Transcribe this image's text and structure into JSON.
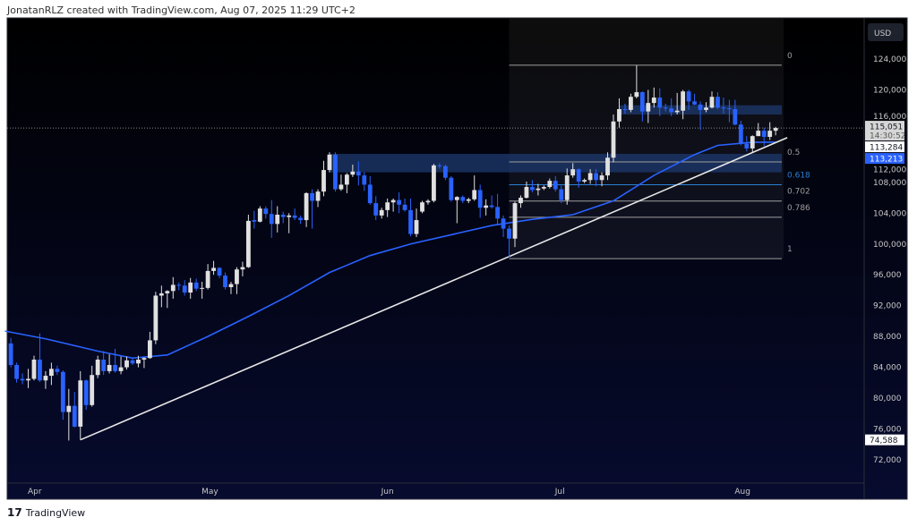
{
  "header": {
    "text": "JonatanRLZ created with TradingView.com, Aug 07, 2025 11:29 UTC+2"
  },
  "footer": {
    "brand": "TradingView",
    "logo_text": "17"
  },
  "axis": {
    "currency": "USD"
  },
  "colors": {
    "up": "#e0e0e0",
    "down": "#2962ff",
    "ma": "#2962ff",
    "trendline": "#e8e8e8",
    "zone": "#1e3a6e"
  },
  "chart_data": {
    "type": "candlestick",
    "title": "",
    "ylim": [
      70000,
      128000
    ],
    "y_ticks": [
      124000,
      120000,
      116000,
      112000,
      108000,
      104000,
      100000,
      96000,
      92000,
      88000,
      84000,
      80000,
      76000,
      72000
    ],
    "y_tick_labels": [
      "124,000",
      "120,000",
      "116,000",
      "112,000",
      "108,000",
      "104,000",
      "100,000",
      "96,000",
      "92,000",
      "88,000",
      "84,000",
      "80,000",
      "76,000",
      "72,000"
    ],
    "x_ticks": [
      {
        "date": "2025-04-01",
        "label": "Apr"
      },
      {
        "date": "2025-05-01",
        "label": "May"
      },
      {
        "date": "2025-06-01",
        "label": "Jun"
      },
      {
        "date": "2025-07-01",
        "label": "Jul"
      },
      {
        "date": "2025-08-01",
        "label": "Aug"
      }
    ],
    "grid": false,
    "candles_fields": [
      "date",
      "open",
      "high",
      "low",
      "close"
    ],
    "candles": [
      [
        "2025-03-28",
        87100,
        87800,
        84000,
        84300
      ],
      [
        "2025-03-29",
        84300,
        84600,
        82000,
        82500
      ],
      [
        "2025-03-30",
        82500,
        83200,
        81800,
        82300
      ],
      [
        "2025-03-31",
        82300,
        83800,
        81300,
        82500
      ],
      [
        "2025-04-01",
        82500,
        85500,
        82300,
        85000
      ],
      [
        "2025-04-02",
        85000,
        88400,
        82100,
        82300
      ],
      [
        "2025-04-03",
        82300,
        83500,
        81200,
        82900
      ],
      [
        "2025-04-04",
        82900,
        84600,
        81700,
        83800
      ],
      [
        "2025-04-05",
        83800,
        84200,
        83000,
        83400
      ],
      [
        "2025-04-06",
        83400,
        83600,
        77200,
        78200
      ],
      [
        "2025-04-07",
        78200,
        81200,
        74500,
        79000
      ],
      [
        "2025-04-08",
        79000,
        80800,
        76200,
        76300
      ],
      [
        "2025-04-09",
        76300,
        83500,
        74588,
        82300
      ],
      [
        "2025-04-10",
        82300,
        82400,
        78500,
        79100
      ],
      [
        "2025-04-11",
        79100,
        84200,
        78900,
        83000
      ],
      [
        "2025-04-12",
        83000,
        85500,
        82600,
        85000
      ],
      [
        "2025-04-13",
        85000,
        86100,
        83000,
        83500
      ],
      [
        "2025-04-14",
        83500,
        85700,
        83200,
        84300
      ],
      [
        "2025-04-15",
        84300,
        86400,
        83300,
        83500
      ],
      [
        "2025-04-16",
        83500,
        85400,
        83100,
        84000
      ],
      [
        "2025-04-17",
        84000,
        85400,
        83700,
        84900
      ],
      [
        "2025-04-18",
        84900,
        85100,
        84300,
        84500
      ],
      [
        "2025-04-19",
        84500,
        85500,
        84000,
        85000
      ],
      [
        "2025-04-20",
        85000,
        85300,
        83900,
        85200
      ],
      [
        "2025-04-21",
        85200,
        88600,
        85100,
        87500
      ],
      [
        "2025-04-22",
        87500,
        93800,
        87000,
        93300
      ],
      [
        "2025-04-23",
        93300,
        94600,
        91800,
        93600
      ],
      [
        "2025-04-24",
        93600,
        94000,
        91700,
        93900
      ],
      [
        "2025-04-25",
        93900,
        95700,
        92900,
        94700
      ],
      [
        "2025-04-26",
        94700,
        95000,
        94000,
        94600
      ],
      [
        "2025-04-27",
        94600,
        95300,
        93300,
        93700
      ],
      [
        "2025-04-28",
        93700,
        95600,
        92900,
        95000
      ],
      [
        "2025-04-29",
        95000,
        95500,
        93900,
        94200
      ],
      [
        "2025-04-30",
        94200,
        95100,
        92900,
        94300
      ],
      [
        "2025-05-01",
        94300,
        97400,
        94100,
        96500
      ],
      [
        "2025-05-02",
        96500,
        97800,
        96000,
        96900
      ],
      [
        "2025-05-03",
        96900,
        97000,
        95600,
        95900
      ],
      [
        "2025-05-04",
        95900,
        96300,
        94100,
        94400
      ],
      [
        "2025-05-05",
        94400,
        95100,
        93500,
        94800
      ],
      [
        "2025-05-06",
        94800,
        97000,
        93500,
        96700
      ],
      [
        "2025-05-07",
        96700,
        97700,
        95800,
        97000
      ],
      [
        "2025-05-08",
        97000,
        103800,
        96900,
        103000
      ],
      [
        "2025-05-09",
        103100,
        104300,
        102000,
        102900
      ],
      [
        "2025-05-10",
        102900,
        104900,
        102800,
        104600
      ],
      [
        "2025-05-11",
        104600,
        104900,
        103300,
        103900
      ],
      [
        "2025-05-12",
        103900,
        105700,
        100800,
        102600
      ],
      [
        "2025-05-13",
        102600,
        104900,
        101500,
        103800
      ],
      [
        "2025-05-14",
        103800,
        104200,
        102700,
        103500
      ],
      [
        "2025-05-15",
        103500,
        104000,
        101400,
        103700
      ],
      [
        "2025-05-16",
        103700,
        104600,
        103100,
        103400
      ],
      [
        "2025-05-17",
        103400,
        103700,
        102600,
        103100
      ],
      [
        "2025-05-18",
        103100,
        106700,
        102200,
        106600
      ],
      [
        "2025-05-19",
        106600,
        107100,
        102000,
        105600
      ],
      [
        "2025-05-20",
        105600,
        107100,
        104800,
        106800
      ],
      [
        "2025-05-21",
        106800,
        110800,
        106200,
        109600
      ],
      [
        "2025-05-22",
        109600,
        111900,
        109300,
        111600
      ],
      [
        "2025-05-23",
        111600,
        111900,
        106800,
        107100
      ],
      [
        "2025-05-24",
        107100,
        109000,
        106900,
        107700
      ],
      [
        "2025-05-25",
        107700,
        109200,
        106600,
        109000
      ],
      [
        "2025-05-26",
        109000,
        110300,
        108700,
        109400
      ],
      [
        "2025-05-27",
        109400,
        110700,
        107600,
        108900
      ],
      [
        "2025-05-28",
        108900,
        109300,
        106900,
        107700
      ],
      [
        "2025-05-29",
        107700,
        108800,
        105100,
        105300
      ],
      [
        "2025-05-30",
        105300,
        106200,
        103100,
        103700
      ],
      [
        "2025-05-31",
        103700,
        104700,
        103300,
        104400
      ],
      [
        "2025-06-01",
        104400,
        105900,
        103500,
        105400
      ],
      [
        "2025-06-02",
        105400,
        105900,
        104200,
        105700
      ],
      [
        "2025-06-03",
        105700,
        106700,
        104000,
        105100
      ],
      [
        "2025-06-04",
        105100,
        105900,
        104200,
        104400
      ],
      [
        "2025-06-05",
        104400,
        105900,
        101000,
        101300
      ],
      [
        "2025-06-06",
        101300,
        104600,
        100900,
        103100
      ],
      [
        "2025-06-07",
        104200,
        105600,
        104000,
        105400
      ],
      [
        "2025-06-08",
        105400,
        105800,
        105100,
        105600
      ],
      [
        "2025-06-09",
        105600,
        110400,
        105400,
        110200
      ],
      [
        "2025-06-10",
        110200,
        110500,
        109800,
        110100
      ],
      [
        "2025-06-11",
        110100,
        110300,
        108300,
        108600
      ],
      [
        "2025-06-12",
        108600,
        108800,
        105500,
        105700
      ],
      [
        "2025-06-13",
        105700,
        106200,
        102700,
        106100
      ],
      [
        "2025-06-14",
        106100,
        106300,
        105300,
        105600
      ],
      [
        "2025-06-15",
        105600,
        106000,
        105300,
        105800
      ],
      [
        "2025-06-16",
        105800,
        108900,
        105600,
        107000
      ],
      [
        "2025-06-17",
        107000,
        107700,
        103400,
        104700
      ],
      [
        "2025-06-18",
        104700,
        105800,
        103700,
        105000
      ],
      [
        "2025-06-19",
        105000,
        106300,
        104600,
        104800
      ],
      [
        "2025-06-20",
        104800,
        106500,
        102400,
        103300
      ],
      [
        "2025-06-21",
        103300,
        103700,
        100900,
        102000
      ],
      [
        "2025-06-22",
        102000,
        102400,
        98200,
        100700
      ],
      [
        "2025-06-23",
        100700,
        105500,
        99600,
        105300
      ],
      [
        "2025-06-24",
        105300,
        106300,
        104700,
        106000
      ],
      [
        "2025-06-25",
        106000,
        108100,
        105900,
        107400
      ],
      [
        "2025-06-26",
        107400,
        108300,
        106700,
        107000
      ],
      [
        "2025-06-27",
        107000,
        107800,
        106300,
        107200
      ],
      [
        "2025-06-28",
        107200,
        107600,
        107000,
        107400
      ],
      [
        "2025-06-29",
        107400,
        108500,
        107200,
        108200
      ],
      [
        "2025-06-30",
        108200,
        108800,
        106800,
        107100
      ],
      [
        "2025-07-01",
        107100,
        107600,
        105300,
        105700
      ],
      [
        "2025-07-02",
        105700,
        109800,
        105100,
        108900
      ],
      [
        "2025-07-03",
        108900,
        110500,
        108600,
        109700
      ],
      [
        "2025-07-04",
        109700,
        109800,
        107300,
        108100
      ],
      [
        "2025-07-05",
        108100,
        108500,
        107900,
        108300
      ],
      [
        "2025-07-06",
        108300,
        109700,
        107800,
        109200
      ],
      [
        "2025-07-07",
        109200,
        109700,
        107500,
        108300
      ],
      [
        "2025-07-08",
        108300,
        109300,
        107500,
        108900
      ],
      [
        "2025-07-09",
        108900,
        111900,
        108300,
        111200
      ],
      [
        "2025-07-10",
        111200,
        116800,
        110600,
        115900
      ],
      [
        "2025-07-11",
        115900,
        118900,
        115100,
        117500
      ],
      [
        "2025-07-12",
        117500,
        118200,
        116900,
        117400
      ],
      [
        "2025-07-13",
        117400,
        119500,
        117100,
        119100
      ],
      [
        "2025-07-14",
        119100,
        123200,
        118900,
        119700
      ],
      [
        "2025-07-15",
        119700,
        119800,
        115900,
        117200
      ],
      [
        "2025-07-16",
        117200,
        120000,
        115700,
        118300
      ],
      [
        "2025-07-17",
        118300,
        120300,
        117700,
        119000
      ],
      [
        "2025-07-18",
        119000,
        120200,
        116600,
        117700
      ],
      [
        "2025-07-19",
        117700,
        118200,
        117200,
        117600
      ],
      [
        "2025-07-20",
        117600,
        118900,
        116600,
        117100
      ],
      [
        "2025-07-21",
        117100,
        119600,
        116800,
        117300
      ],
      [
        "2025-07-22",
        117300,
        120000,
        116200,
        119800
      ],
      [
        "2025-07-23",
        119800,
        120000,
        117400,
        118500
      ],
      [
        "2025-07-24",
        118500,
        119500,
        118000,
        118100
      ],
      [
        "2025-07-25",
        118100,
        118500,
        114800,
        117400
      ],
      [
        "2025-07-26",
        117400,
        118400,
        117100,
        117700
      ],
      [
        "2025-07-27",
        117700,
        119800,
        117600,
        119100
      ],
      [
        "2025-07-28",
        119100,
        119700,
        117500,
        117700
      ],
      [
        "2025-07-29",
        117700,
        119000,
        116900,
        117600
      ],
      [
        "2025-07-30",
        117600,
        118700,
        115800,
        117500
      ],
      [
        "2025-07-31",
        117500,
        118700,
        115400,
        115500
      ],
      [
        "2025-08-01",
        115500,
        116000,
        112800,
        113000
      ],
      [
        "2025-08-02",
        113000,
        114000,
        112000,
        112400
      ],
      [
        "2025-08-03",
        112400,
        114100,
        111900,
        114000
      ],
      [
        "2025-08-04",
        114000,
        115700,
        114000,
        114700
      ],
      [
        "2025-08-05",
        114700,
        115100,
        112700,
        113900
      ],
      [
        "2025-08-06",
        113900,
        115800,
        113500,
        114700
      ],
      [
        "2025-08-07",
        114700,
        115200,
        114100,
        115051
      ]
    ],
    "moving_average": [
      [
        "2025-03-27",
        88700
      ],
      [
        "2025-04-03",
        87700
      ],
      [
        "2025-04-12",
        86100
      ],
      [
        "2025-04-18",
        85200
      ],
      [
        "2025-04-24",
        85600
      ],
      [
        "2025-05-01",
        88000
      ],
      [
        "2025-05-08",
        90600
      ],
      [
        "2025-05-15",
        93300
      ],
      [
        "2025-05-22",
        96300
      ],
      [
        "2025-05-29",
        98500
      ],
      [
        "2025-06-05",
        100000
      ],
      [
        "2025-06-12",
        101200
      ],
      [
        "2025-06-19",
        102400
      ],
      [
        "2025-06-26",
        103200
      ],
      [
        "2025-07-03",
        103800
      ],
      [
        "2025-07-10",
        105600
      ],
      [
        "2025-07-17",
        108900
      ],
      [
        "2025-07-24",
        111600
      ],
      [
        "2025-07-28",
        112800
      ],
      [
        "2025-08-03",
        113200
      ],
      [
        "2025-08-07",
        113213
      ]
    ],
    "trendline": {
      "from": [
        "2025-04-09",
        74588
      ],
      "to": [
        "2025-08-09",
        113800
      ]
    },
    "zones": [
      {
        "from_date": "2025-05-22",
        "top": 111700,
        "bottom": 109300
      },
      {
        "from_date": "2025-07-11",
        "top": 118000,
        "bottom": 116800
      }
    ],
    "fib_retracement": {
      "from_date": "2025-06-22",
      "high": 123200,
      "low": 98100,
      "levels": [
        {
          "ratio": 0,
          "label": "0",
          "color": "#9e9e9e"
        },
        {
          "ratio": 0.5,
          "label": "0.5",
          "color": "#9e9e9e"
        },
        {
          "ratio": 0.618,
          "label": "0.618",
          "color": "#2a7fd4"
        },
        {
          "ratio": 0.702,
          "label": "0.702",
          "color": "#9e9e9e"
        },
        {
          "ratio": 0.786,
          "label": "0.786",
          "color": "#9e9e9e"
        },
        {
          "ratio": 1,
          "label": "1",
          "color": "#9e9e9e"
        }
      ]
    },
    "price_labels": [
      {
        "value": 115051,
        "text": "115,051",
        "sub": "14:30:52",
        "style": "last"
      },
      {
        "value": 113284,
        "text": "113,284",
        "style": "white"
      },
      {
        "value": 113213,
        "text": "113,213",
        "style": "ma"
      },
      {
        "value": 74588,
        "text": "74,588",
        "style": "white"
      }
    ]
  }
}
